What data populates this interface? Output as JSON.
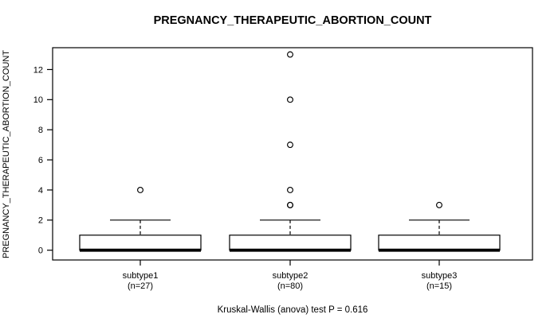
{
  "chart_data": {
    "type": "boxplot",
    "title": "PREGNANCY_THERAPEUTIC_ABORTION_COUNT",
    "ylabel": "PREGNANCY_THERAPEUTIC_ABORTION_COUNT",
    "xlabel": "",
    "caption": "Kruskal-Wallis (anova) test P = 0.616",
    "test_name": "Kruskal-Wallis (anova)",
    "p_value": "0.616",
    "yticks": [
      0,
      2,
      4,
      6,
      8,
      10,
      12
    ],
    "ylim": [
      -0.65,
      13.45
    ],
    "grid": false,
    "legend": "none",
    "groups": [
      {
        "label": "subtype1",
        "sublabel": "(n=27)",
        "n": 27,
        "whisker_low": 0,
        "q1": 0,
        "median": 0,
        "q3": 1,
        "whisker_high": 2,
        "outliers": [
          4
        ]
      },
      {
        "label": "subtype2",
        "sublabel": "(n=80)",
        "n": 80,
        "whisker_low": 0,
        "q1": 0,
        "median": 0,
        "q3": 1,
        "whisker_high": 2,
        "outliers": [
          3,
          3,
          4,
          7,
          10,
          13
        ]
      },
      {
        "label": "subtype3",
        "sublabel": "(n=15)",
        "n": 15,
        "whisker_low": 0,
        "q1": 0,
        "median": 0,
        "q3": 1,
        "whisker_high": 2,
        "outliers": [
          3
        ]
      }
    ],
    "colors": {
      "line": "#000000",
      "box_fill": "#ffffff",
      "background": "#ffffff"
    }
  }
}
